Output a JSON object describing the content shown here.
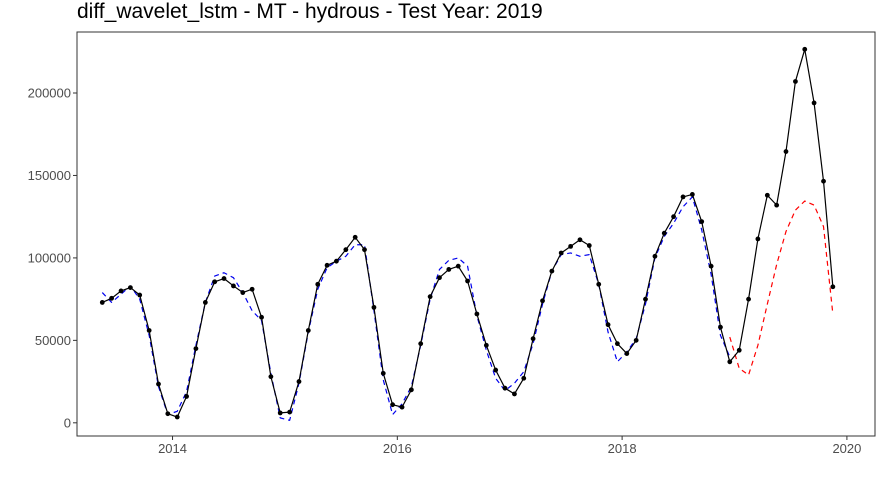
{
  "chart_data": {
    "type": "line",
    "title": "diff_wavelet_lstm - MT - hydrous - Test Year: 2019",
    "xlabel": "",
    "ylabel": "",
    "xlim": [
      2013.15,
      2020.25
    ],
    "ylim": [
      -8000,
      237000
    ],
    "x_ticks": [
      2014,
      2016,
      2018,
      2020
    ],
    "x_tick_labels": [
      "2014",
      "2016",
      "2018",
      "2020"
    ],
    "y_ticks": [
      0,
      50000,
      100000,
      150000,
      200000
    ],
    "y_tick_labels": [
      "0",
      "50000",
      "100000",
      "150000",
      "200000"
    ],
    "grid": false,
    "legend": "none",
    "series": [
      {
        "color": "#000000",
        "style": "solid",
        "markers": true,
        "x": [
          2013.375,
          2013.458,
          2013.542,
          2013.625,
          2013.708,
          2013.792,
          2013.875,
          2013.958,
          2014.042,
          2014.125,
          2014.208,
          2014.292,
          2014.375,
          2014.458,
          2014.542,
          2014.625,
          2014.708,
          2014.792,
          2014.875,
          2014.958,
          2015.042,
          2015.125,
          2015.208,
          2015.292,
          2015.375,
          2015.458,
          2015.542,
          2015.625,
          2015.708,
          2015.792,
          2015.875,
          2015.958,
          2016.042,
          2016.125,
          2016.208,
          2016.292,
          2016.375,
          2016.458,
          2016.542,
          2016.625,
          2016.708,
          2016.792,
          2016.875,
          2016.958,
          2017.042,
          2017.125,
          2017.208,
          2017.292,
          2017.375,
          2017.458,
          2017.542,
          2017.625,
          2017.708,
          2017.792,
          2017.875,
          2017.958,
          2018.042,
          2018.125,
          2018.208,
          2018.292,
          2018.375,
          2018.458,
          2018.542,
          2018.625,
          2018.708,
          2018.792,
          2018.875,
          2018.958,
          2019.042,
          2019.125,
          2019.208,
          2019.292,
          2019.375,
          2019.458,
          2019.542,
          2019.625,
          2019.708,
          2019.792,
          2019.875
        ],
        "y": [
          73000,
          75500,
          80000,
          82000,
          77500,
          56000,
          23500,
          5500,
          3500,
          16000,
          45000,
          73000,
          85500,
          87500,
          83000,
          79000,
          81000,
          64000,
          28000,
          6000,
          6500,
          25000,
          56000,
          84000,
          95500,
          98000,
          105000,
          112500,
          105000,
          70000,
          30000,
          11000,
          9500,
          20000,
          48000,
          76500,
          88000,
          93000,
          95000,
          86000,
          66000,
          47000,
          32000,
          21000,
          17500,
          27000,
          51000,
          74000,
          92000,
          103000,
          107000,
          111000,
          107500,
          84000,
          59500,
          48000,
          42000,
          50000,
          75000,
          101000,
          115000,
          125000,
          137000,
          138500,
          122000,
          95000,
          58000,
          37000,
          44000,
          75000,
          111500,
          138000,
          132000,
          164500,
          207000,
          226500,
          194000,
          146500,
          82500
        ]
      },
      {
        "color": "#0000ee",
        "style": "dashed",
        "markers": false,
        "x": [
          2013.375,
          2013.458,
          2013.542,
          2013.625,
          2013.708,
          2013.792,
          2013.875,
          2013.958,
          2014.042,
          2014.125,
          2014.208,
          2014.292,
          2014.375,
          2014.458,
          2014.542,
          2014.625,
          2014.708,
          2014.792,
          2014.875,
          2014.958,
          2015.042,
          2015.125,
          2015.208,
          2015.292,
          2015.375,
          2015.458,
          2015.542,
          2015.625,
          2015.708,
          2015.792,
          2015.875,
          2015.958,
          2016.042,
          2016.125,
          2016.208,
          2016.292,
          2016.375,
          2016.458,
          2016.542,
          2016.625,
          2016.708,
          2016.792,
          2016.875,
          2016.958,
          2017.042,
          2017.125,
          2017.208,
          2017.292,
          2017.375,
          2017.458,
          2017.542,
          2017.625,
          2017.708,
          2017.792,
          2017.875,
          2017.958,
          2018.042,
          2018.125,
          2018.208,
          2018.292,
          2018.375,
          2018.458,
          2018.542,
          2018.625,
          2018.708,
          2018.792,
          2018.875,
          2018.958
        ],
        "y": [
          79000,
          73000,
          78000,
          83000,
          75000,
          53000,
          22000,
          5000,
          7000,
          19000,
          47000,
          73000,
          89000,
          91000,
          88000,
          79000,
          68000,
          62000,
          30000,
          3000,
          1500,
          24000,
          55000,
          81000,
          94000,
          98000,
          101000,
          108000,
          108000,
          68000,
          26000,
          5000,
          11500,
          22000,
          47000,
          75000,
          93000,
          98500,
          100000,
          95000,
          65000,
          44000,
          27000,
          19500,
          24000,
          31000,
          48000,
          72000,
          92000,
          102000,
          103000,
          101000,
          102000,
          84000,
          55000,
          37000,
          43000,
          51000,
          72000,
          100000,
          113000,
          121000,
          131000,
          137000,
          117000,
          90000,
          53000,
          40000
        ]
      },
      {
        "color": "#ff0000",
        "style": "dashed",
        "markers": false,
        "x": [
          2018.958,
          2019.042,
          2019.125,
          2019.208,
          2019.292,
          2019.375,
          2019.458,
          2019.542,
          2019.625,
          2019.708,
          2019.792,
          2019.875
        ],
        "y": [
          52000,
          33000,
          29000,
          47000,
          72000,
          96000,
          116000,
          129000,
          134500,
          132000,
          119000,
          66000
        ]
      }
    ]
  }
}
